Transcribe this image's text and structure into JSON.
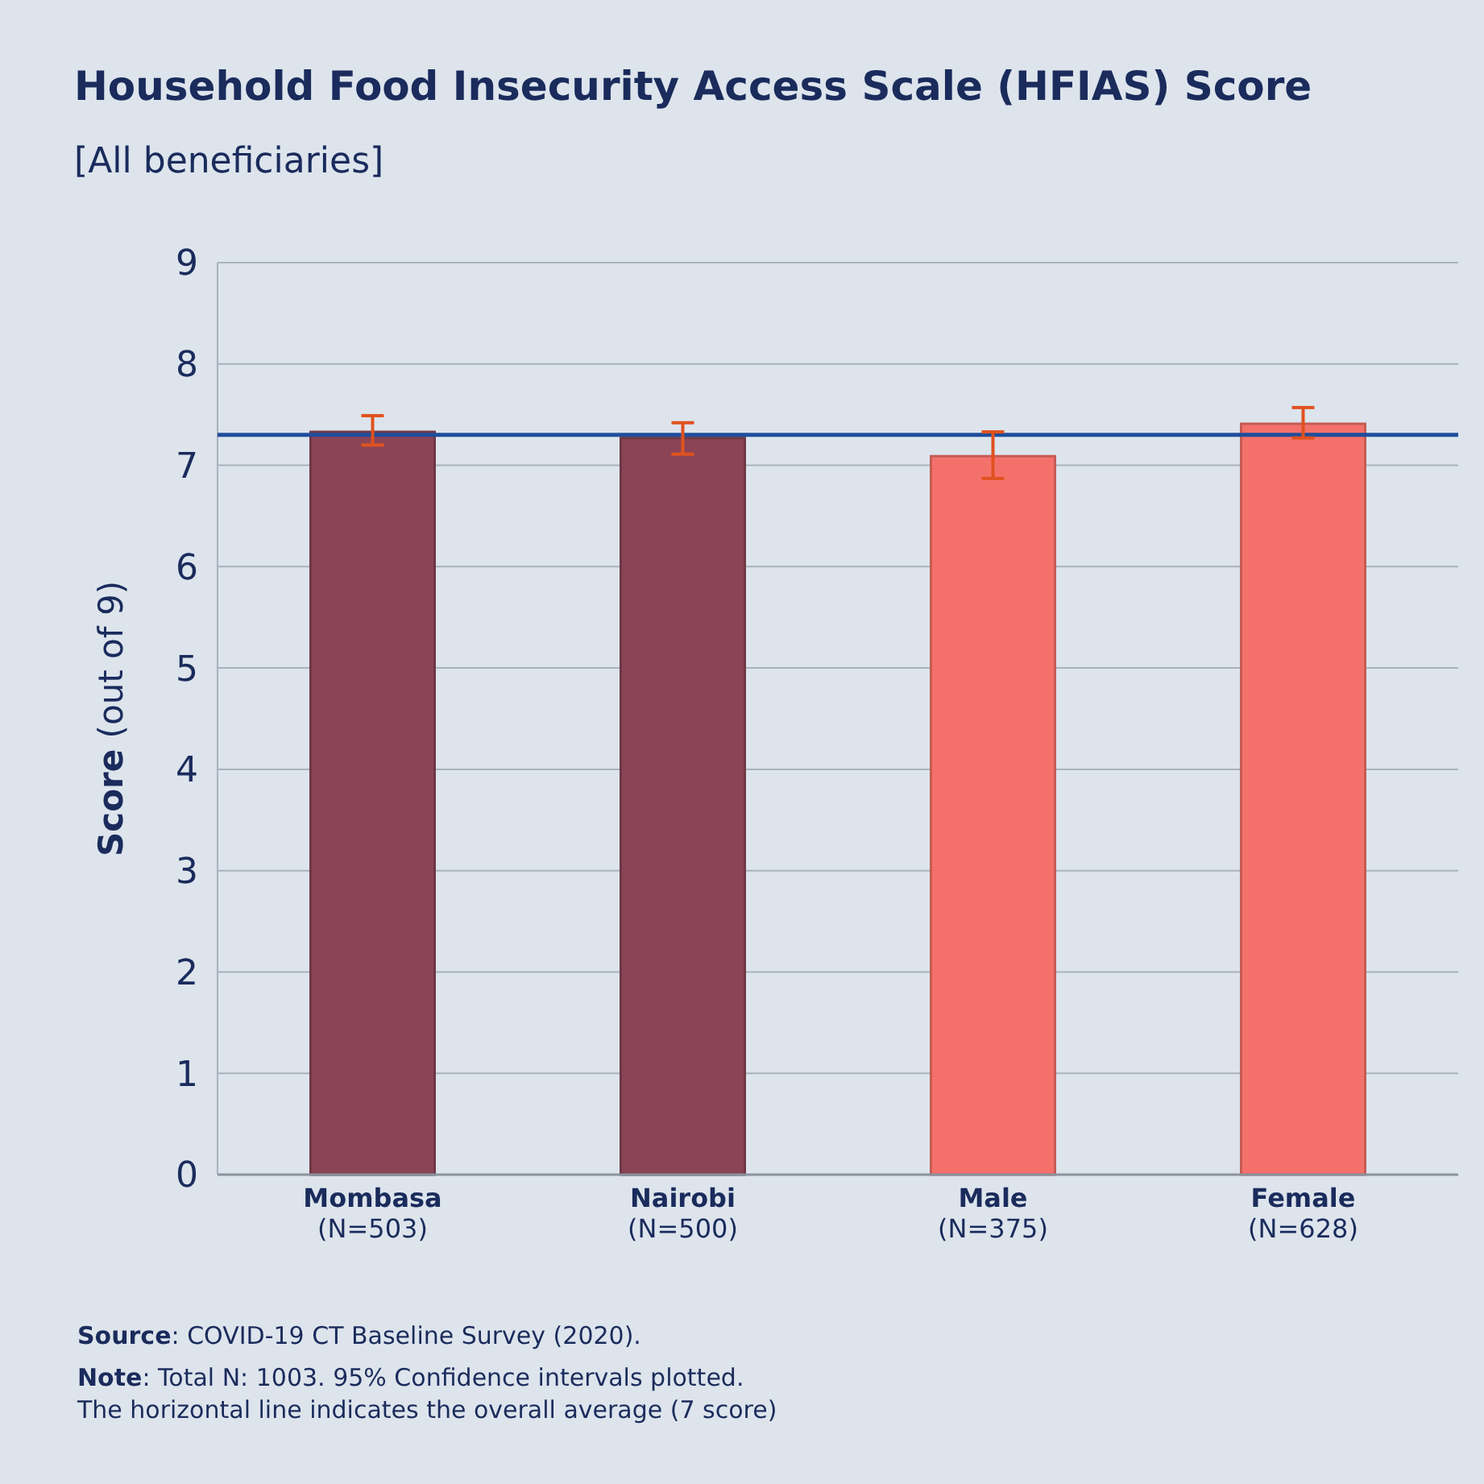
{
  "chart_data": {
    "type": "bar",
    "title": "Household Food Insecurity Access Scale (HFIAS) Score",
    "subtitle": "[All beneficiaries]",
    "ylabel": "Score (out of 9)",
    "categories": [
      "Mombasa\n(N=503)",
      "Nairobi\n(N=500)",
      "Male\n(N=375)",
      "Female\n(N=628)"
    ],
    "values": [
      7.33,
      7.27,
      7.09,
      7.41
    ],
    "colors": [
      "#8b4455",
      "#8b4455",
      "#f4716b",
      "#f4716b"
    ],
    "errors": [
      [
        7.2,
        7.49
      ],
      [
        7.11,
        7.42
      ],
      [
        6.87,
        7.33
      ],
      [
        7.27,
        7.57
      ]
    ],
    "ylim": [
      0,
      9
    ],
    "yticks": [
      0,
      1,
      2,
      3,
      4,
      5,
      6,
      7,
      8,
      9
    ],
    "grid": "y",
    "ref_lines": [
      {
        "axis": "y",
        "value": 7.3,
        "color": "#1f4e9c"
      }
    ],
    "annotations": [
      "Source: COVID-19 CT Baseline Survey (2020).",
      "Note: Total N: 1003. 95% Confidence intervals plotted.\nThe horizontal line indicates the overall average (7 score)"
    ]
  }
}
